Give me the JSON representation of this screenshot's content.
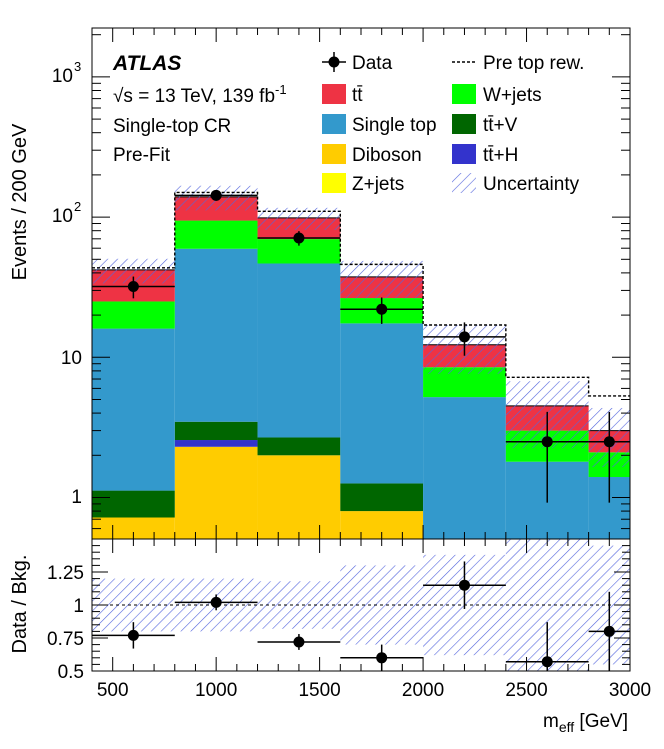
{
  "chart_data": {
    "type": "bar",
    "stacked": true,
    "ylog": true,
    "bin_edges": [
      400,
      800,
      1200,
      1600,
      2000,
      2400,
      2800,
      3000
    ],
    "bin_centers": [
      600,
      1000,
      1400,
      1800,
      2200,
      2600,
      2900
    ],
    "xlim": [
      400,
      3000
    ],
    "ylim": [
      0.55,
      2000
    ],
    "xticks": [
      500,
      1000,
      1500,
      2000,
      2500,
      3000
    ],
    "xtick_labels": [
      "500",
      "1000",
      "1500",
      "2000",
      "2500",
      "3000"
    ],
    "ytick_labels": {
      "one": "1",
      "ten": "10",
      "hundred_base": "10",
      "hundred_exp": "2",
      "thousand_base": "10",
      "thousand_exp": "3"
    },
    "ylabel": "Events / 200 GeV",
    "xlabel_main": "m",
    "xlabel_sub": "eff",
    "xlabel_unit": " [GeV]",
    "annotations": {
      "experiment": "ATLAS",
      "energy": "√s = 13 TeV, 139 fb",
      "energy_sup": "-1",
      "region": "Single-top CR",
      "stage": "Pre-Fit"
    },
    "series": [
      {
        "name": "Diboson",
        "legend": "Diboson",
        "color": "#ffcc00",
        "values": [
          0.72,
          2.3,
          2.0,
          0.8,
          0.0,
          0.0,
          0.0
        ]
      },
      {
        "name": "ttH",
        "legend": "tt̄+H",
        "color": "#3333cc",
        "values": [
          0.0,
          0.27,
          0.0,
          0.0,
          0.0,
          0.0,
          0.0
        ]
      },
      {
        "name": "Z+jets",
        "legend": "Z+jets",
        "color": "#ffff00",
        "values": [
          0.0,
          0.0,
          0.0,
          0.0,
          0.0,
          0.0,
          0.0
        ]
      },
      {
        "name": "ttV",
        "legend": "tt̄+V",
        "color": "#006600",
        "values": [
          0.4,
          0.9,
          0.68,
          0.46,
          0.0,
          0.0,
          0.0
        ]
      },
      {
        "name": "Single top",
        "legend": "Single top",
        "color": "#3399cc",
        "values": [
          14.9,
          56.0,
          44.0,
          16.2,
          5.2,
          1.8,
          1.4
        ]
      },
      {
        "name": "W+jets",
        "legend": "W+jets",
        "color": "#00ff00",
        "values": [
          9.0,
          35.0,
          23.0,
          9.0,
          3.3,
          1.2,
          0.7
        ]
      },
      {
        "name": "ttbar",
        "legend": "tt̄",
        "color": "#ee3344",
        "values": [
          17.0,
          45.0,
          29.0,
          11.0,
          3.8,
          1.5,
          0.9
        ]
      }
    ],
    "pre_top_rew": {
      "legend": "Pre top rew.",
      "values": [
        43.5,
        150.0,
        110.0,
        46.0,
        17.0,
        7.2,
        5.3
      ]
    },
    "uncertainty": {
      "legend": "Uncertainty",
      "values": [
        0.2,
        0.2,
        0.18,
        0.3,
        0.38,
        0.5,
        0.45
      ]
    },
    "data": {
      "legend": "Data",
      "values": [
        32,
        143,
        71,
        22,
        14,
        2.5,
        2.5
      ]
    },
    "ratio": {
      "ylabel": "Data / Bkg.",
      "ylim": [
        0.5,
        1.5
      ],
      "yticks": [
        0.5,
        0.75,
        1,
        1.25
      ],
      "ytick_labels": [
        "0.5",
        "0.75",
        "1",
        "1.25"
      ],
      "values": [
        0.77,
        1.02,
        0.72,
        0.6,
        1.15,
        0.57,
        0.8
      ],
      "errors": [
        0.1,
        0.06,
        0.06,
        0.1,
        0.18,
        0.3,
        0.3
      ]
    }
  }
}
